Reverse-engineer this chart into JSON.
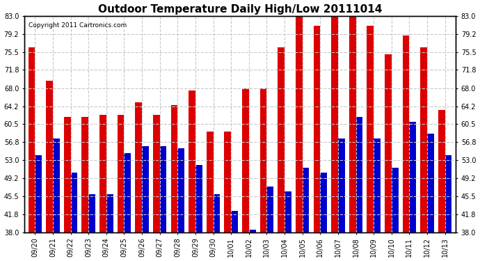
{
  "title": "Outdoor Temperature Daily High/Low 20111014",
  "copyright": "Copyright 2011 Cartronics.com",
  "categories": [
    "09/20",
    "09/21",
    "09/22",
    "09/23",
    "09/24",
    "09/25",
    "09/26",
    "09/27",
    "09/28",
    "09/29",
    "09/30",
    "10/01",
    "10/02",
    "10/03",
    "10/04",
    "10/05",
    "10/06",
    "10/07",
    "10/08",
    "10/09",
    "10/10",
    "10/11",
    "10/12",
    "10/13"
  ],
  "highs": [
    76.5,
    69.5,
    62.0,
    62.0,
    62.5,
    62.5,
    65.0,
    62.5,
    64.5,
    67.5,
    59.0,
    59.0,
    68.0,
    68.0,
    76.5,
    83.0,
    81.0,
    83.0,
    83.0,
    81.0,
    75.0,
    79.0,
    76.5,
    63.5
  ],
  "lows": [
    54.0,
    57.5,
    50.5,
    46.0,
    46.0,
    54.5,
    56.0,
    56.0,
    55.5,
    52.0,
    46.0,
    42.5,
    38.5,
    47.5,
    46.5,
    51.5,
    50.5,
    57.5,
    62.0,
    57.5,
    51.5,
    61.0,
    58.5,
    54.0
  ],
  "high_color": "#dd0000",
  "low_color": "#0000cc",
  "bg_color": "#ffffff",
  "grid_color": "#c8c8c8",
  "yticks": [
    38.0,
    41.8,
    45.5,
    49.2,
    53.0,
    56.8,
    60.5,
    64.2,
    68.0,
    71.8,
    75.5,
    79.2,
    83.0
  ],
  "ymin": 38.0,
  "ymax": 83.0,
  "bar_width": 0.38,
  "title_fontsize": 11,
  "tick_fontsize": 7,
  "copyright_fontsize": 6.5
}
